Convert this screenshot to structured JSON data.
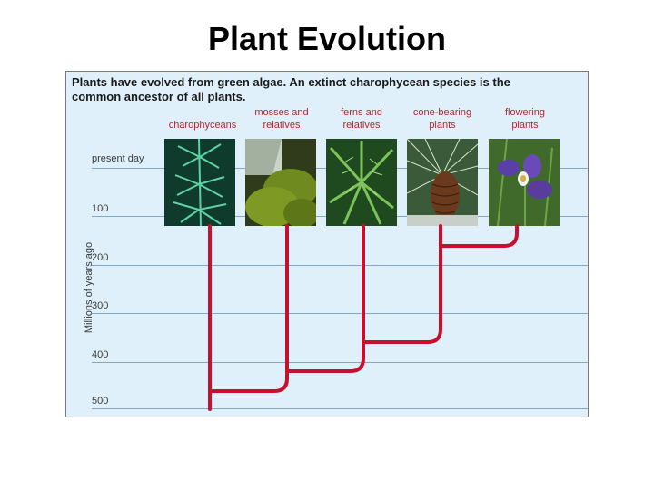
{
  "title": "Plant Evolution",
  "caption": "Plants have evolved from green algae. An extinct charophycean species is the common ancestor of all plants.",
  "groups": [
    "charophyceans",
    "mosses and relatives",
    "ferns and relatives",
    "cone-bearing plants",
    "flowering plants"
  ],
  "axis": {
    "label": "Millions of years ago",
    "ticks": [
      "present day",
      "100",
      "200",
      "300",
      "400",
      "500"
    ]
  },
  "colors": {
    "branch": "#c8102e",
    "label": "#b5262d",
    "panel": "#dff0fb"
  }
}
